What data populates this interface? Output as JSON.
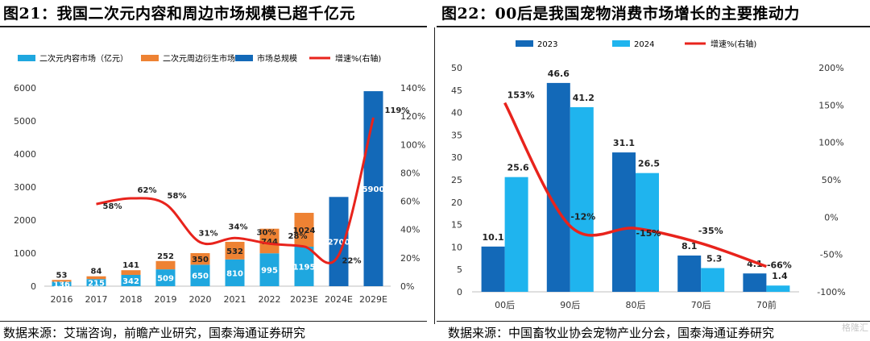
{
  "left": {
    "title": "图21：我国二次元内容和周边市场规模已超千亿元",
    "source": "数据来源：艾瑞咨询，前瞻产业研究，国泰海通证券研究",
    "chart_data": {
      "type": "bar",
      "categories": [
        "2016",
        "2017",
        "2018",
        "2019",
        "2020",
        "2021",
        "2022",
        "2023E",
        "2024E",
        "2029E"
      ],
      "series": [
        {
          "name": "二次元内容市场（亿元）",
          "kind": "stacked-bar",
          "axis": "left",
          "color": "#1fa7df",
          "values": [
            136,
            215,
            342,
            509,
            650,
            810,
            995,
            1195,
            null,
            null
          ]
        },
        {
          "name": "二次元周边衍生市场",
          "kind": "stacked-bar",
          "axis": "left",
          "color": "#ee8233",
          "values": [
            53,
            84,
            141,
            252,
            350,
            532,
            744,
            1024,
            null,
            null
          ]
        },
        {
          "name": "市场总规模",
          "kind": "bar",
          "axis": "left",
          "color": "#1369b8",
          "values": [
            null,
            null,
            null,
            null,
            null,
            null,
            null,
            null,
            2700,
            5900
          ]
        },
        {
          "name": "增速%(右轴)",
          "kind": "line",
          "axis": "right",
          "color": "#e8231c",
          "values": [
            null,
            58,
            62,
            58,
            31,
            34,
            30,
            28,
            22,
            119
          ]
        }
      ],
      "labels": {
        "content": [
          "136",
          "215",
          "342",
          "509",
          "650",
          "810",
          "995",
          "1195",
          "",
          ""
        ],
        "derivative": [
          "53",
          "84",
          "141",
          "252",
          "350",
          "532",
          "744",
          "1024",
          "",
          ""
        ],
        "total": [
          "",
          "",
          "",
          "",
          "",
          "",
          "",
          "",
          "2700",
          "5900"
        ],
        "growth": [
          "",
          "58%",
          "62%",
          "58%",
          "31%",
          "34%",
          "30%",
          "28%",
          "22%",
          "119%"
        ]
      },
      "y_left": {
        "min": 0,
        "max": 6000,
        "ticks": [
          "0",
          "1000",
          "2000",
          "3000",
          "4000",
          "5000",
          "6000"
        ]
      },
      "y_right": {
        "min": 0,
        "max": 140,
        "ticks": [
          "0%",
          "20%",
          "40%",
          "60%",
          "80%",
          "100%",
          "120%",
          "140%"
        ]
      },
      "legend": "top"
    }
  },
  "right": {
    "title": "图22：00后是我国宠物消费市场增长的主要推动力",
    "source": "数据来源：中国畜牧业协会宠物产业分会，国泰海通证券研究",
    "chart_data": {
      "type": "bar",
      "categories": [
        "00后",
        "90后",
        "80后",
        "70后",
        "70前"
      ],
      "series": [
        {
          "name": "2023",
          "kind": "bar",
          "axis": "left",
          "color": "#1369b8",
          "values": [
            10.1,
            46.6,
            31.1,
            8.1,
            4.1
          ]
        },
        {
          "name": "2024",
          "kind": "bar",
          "axis": "left",
          "color": "#1fb4ee",
          "values": [
            25.6,
            41.2,
            26.5,
            5.3,
            1.4
          ]
        },
        {
          "name": "增速%(右轴)",
          "kind": "line",
          "axis": "right",
          "color": "#e8231c",
          "values": [
            153,
            -12,
            -15,
            -35,
            -66
          ]
        }
      ],
      "labels": {
        "s2023": [
          "10.1",
          "46.6",
          "31.1",
          "8.1",
          "4.1"
        ],
        "s2024": [
          "25.6",
          "41.2",
          "26.5",
          "5.3",
          "1.4"
        ],
        "growth": [
          "153%",
          "-12%",
          "-15%",
          "-35%",
          "-66%"
        ]
      },
      "y_left": {
        "min": 0,
        "max": 50,
        "ticks": [
          "0",
          "5",
          "10",
          "15",
          "20",
          "25",
          "30",
          "35",
          "40",
          "45",
          "50"
        ]
      },
      "y_right": {
        "min": -100,
        "max": 200,
        "ticks": [
          "-100%",
          "-50%",
          "0%",
          "50%",
          "100%",
          "150%",
          "200%"
        ]
      },
      "legend": "top"
    }
  },
  "watermark": "格隆汇"
}
